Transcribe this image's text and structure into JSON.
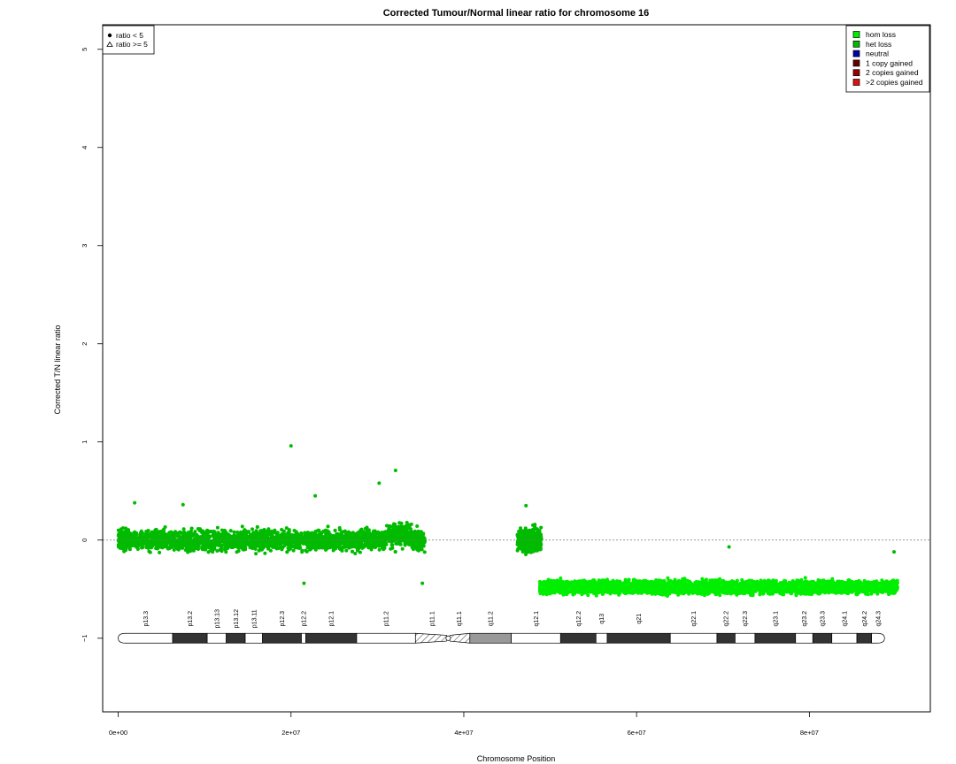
{
  "chart_data": {
    "type": "scatter",
    "title": "Corrected Tumour/Normal linear ratio for chromosome  16",
    "xlabel": "Chromosome Position",
    "ylabel": "Corrected T/N linear ratio",
    "xlim": [
      -1800000,
      94000000
    ],
    "ylim": [
      -1.75,
      5.25
    ],
    "x_ticks": [
      0,
      20000000,
      40000000,
      60000000,
      80000000
    ],
    "x_tick_labels": [
      "0e+00",
      "2e+07",
      "4e+07",
      "6e+07",
      "8e+07"
    ],
    "y_ticks": [
      -1,
      0,
      1,
      2,
      3,
      4,
      5
    ],
    "y_tick_labels": [
      "−1",
      "0",
      "1",
      "2",
      "3",
      "4",
      "5"
    ],
    "reference_line_y": 0,
    "shape_legend": {
      "placement": "top-left",
      "entries": [
        {
          "label": "ratio < 5",
          "symbol": "circle"
        },
        {
          "label": "ratio >= 5",
          "symbol": "triangle"
        }
      ]
    },
    "color_legend": {
      "placement": "top-right",
      "entries": [
        {
          "label": "hom loss",
          "color": "#00ee00"
        },
        {
          "label": "het loss",
          "color": "#00bb00"
        },
        {
          "label": "neutral",
          "color": "#0000aa"
        },
        {
          "label": "1 copy gained",
          "color": "#660000"
        },
        {
          "label": "2 copies gained",
          "color": "#990000"
        },
        {
          "label": ">2 copies gained",
          "color": "#dd1111"
        }
      ]
    },
    "series": [
      {
        "state": "het loss",
        "color": "#00bb00",
        "x_range": [
          0,
          35500000
        ],
        "mean": 0.0,
        "spread": 0.07,
        "count": 3200
      },
      {
        "state": "het loss",
        "color": "#00bb00",
        "x_range": [
          46200000,
          49000000
        ],
        "mean": 0.0,
        "spread": 0.08,
        "count": 420
      },
      {
        "state": "hom loss",
        "color": "#00ee00",
        "x_range": [
          48800000,
          90200000
        ],
        "mean": -0.48,
        "spread": 0.045,
        "count": 4600
      }
    ],
    "notable_points": [
      {
        "x": 20000000,
        "y": 0.96
      },
      {
        "x": 32100000,
        "y": 0.71
      },
      {
        "x": 30200000,
        "y": 0.58
      },
      {
        "x": 1900000,
        "y": 0.38
      },
      {
        "x": 7500000,
        "y": 0.36
      },
      {
        "x": 22800000,
        "y": 0.45
      },
      {
        "x": 47200000,
        "y": 0.35
      },
      {
        "x": 35200000,
        "y": -0.44
      },
      {
        "x": 21500000,
        "y": -0.44
      },
      {
        "x": 70700000,
        "y": -0.07
      },
      {
        "x": 89800000,
        "y": -0.12
      }
    ],
    "ideogram": {
      "y": -1,
      "bands": [
        {
          "name": "p13.3",
          "start": 0,
          "end": 6300000,
          "stain": "gneg"
        },
        {
          "name": "p13.2",
          "start": 6300000,
          "end": 10300000,
          "stain": "gpos"
        },
        {
          "name": "p13.13",
          "start": 10300000,
          "end": 12500000,
          "stain": "gneg"
        },
        {
          "name": "p13.12",
          "start": 12500000,
          "end": 14700000,
          "stain": "gpos"
        },
        {
          "name": "p13.11",
          "start": 14700000,
          "end": 16700000,
          "stain": "gneg"
        },
        {
          "name": "p12.3",
          "start": 16700000,
          "end": 21200000,
          "stain": "gpos"
        },
        {
          "name": "p12.2",
          "start": 21200000,
          "end": 21700000,
          "stain": "gneg"
        },
        {
          "name": "p12.1",
          "start": 21700000,
          "end": 27600000,
          "stain": "gpos"
        },
        {
          "name": "p11.2",
          "start": 27600000,
          "end": 34400000,
          "stain": "gneg"
        },
        {
          "name": "p11.1",
          "start": 34400000,
          "end": 38200000,
          "stain": "stalk"
        },
        {
          "name": "q11.1",
          "start": 38200000,
          "end": 40700000,
          "stain": "stalk"
        },
        {
          "name": "q11.2",
          "start": 40700000,
          "end": 45500000,
          "stain": "gvar"
        },
        {
          "name": "q12.1",
          "start": 45500000,
          "end": 51200000,
          "stain": "gneg"
        },
        {
          "name": "q12.2",
          "start": 51200000,
          "end": 55300000,
          "stain": "gpos"
        },
        {
          "name": "q13",
          "start": 55300000,
          "end": 56600000,
          "stain": "gneg"
        },
        {
          "name": "q21",
          "start": 56600000,
          "end": 63900000,
          "stain": "gpos"
        },
        {
          "name": "q22.1",
          "start": 63900000,
          "end": 69300000,
          "stain": "gneg"
        },
        {
          "name": "q22.2",
          "start": 69300000,
          "end": 71400000,
          "stain": "gpos"
        },
        {
          "name": "q22.3",
          "start": 71400000,
          "end": 73700000,
          "stain": "gneg"
        },
        {
          "name": "q23.1",
          "start": 73700000,
          "end": 78400000,
          "stain": "gpos"
        },
        {
          "name": "q23.2",
          "start": 78400000,
          "end": 80400000,
          "stain": "gneg"
        },
        {
          "name": "q23.3",
          "start": 80400000,
          "end": 82600000,
          "stain": "gpos"
        },
        {
          "name": "q24.1",
          "start": 82600000,
          "end": 85500000,
          "stain": "gneg"
        },
        {
          "name": "q24.2",
          "start": 85500000,
          "end": 87200000,
          "stain": "gpos"
        },
        {
          "name": "q24.3",
          "start": 87200000,
          "end": 88700000,
          "stain": "gneg"
        }
      ],
      "centromere": 38200000
    }
  }
}
